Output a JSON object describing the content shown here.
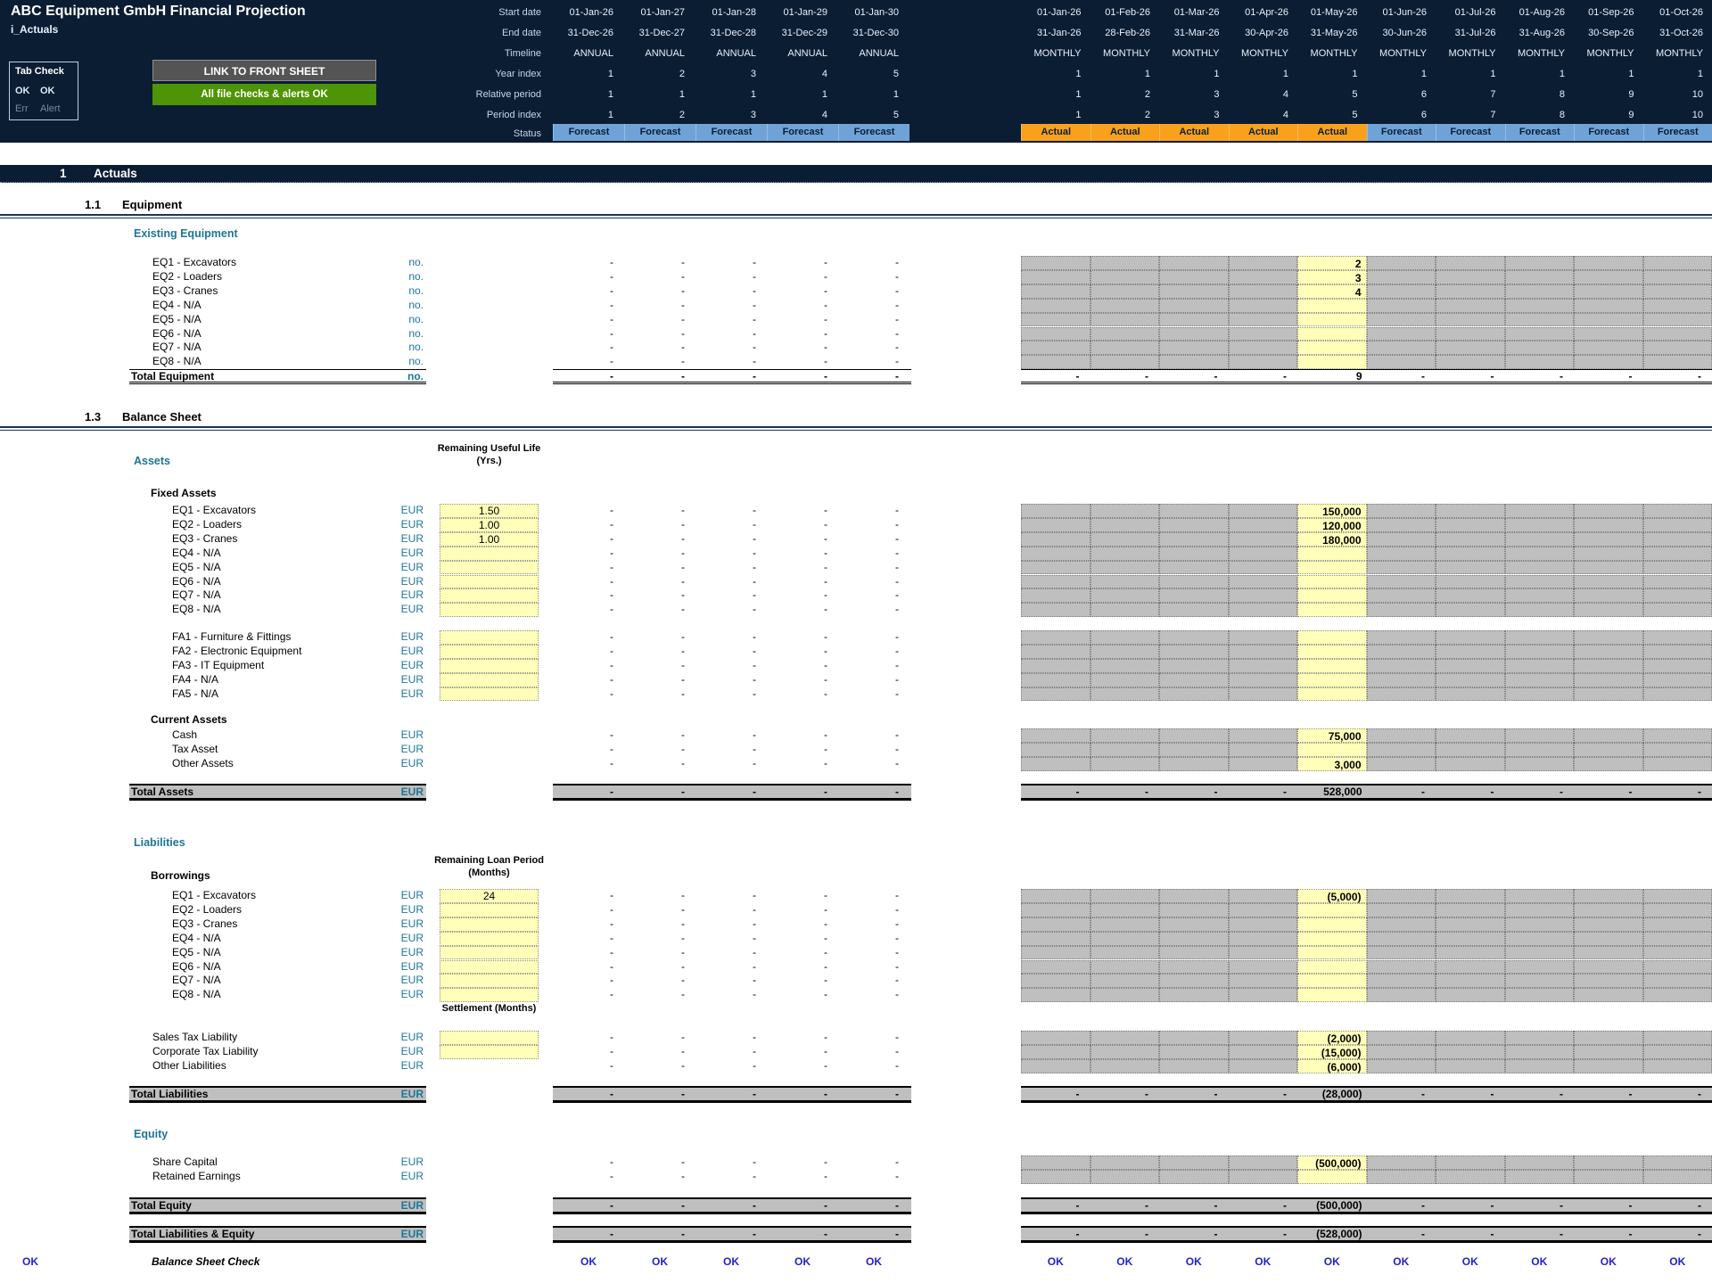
{
  "colors": {
    "navy": "#0b1d33",
    "teal": "#1e7596",
    "red": "#c00000",
    "gray": "#bfbfbf",
    "yellow": "#ffffb9",
    "statusblue": "#6fa3d8",
    "statusorange": "#f9a11b",
    "green": "#4d9406",
    "checkblue": "#2222cc"
  },
  "tokens": {
    "dash": "-"
  },
  "header": {
    "title": "ABC Equipment GmbH Financial Projection",
    "sheet_name": "i_Actuals",
    "tab_check": {
      "title": "Tab Check",
      "ok_left": "OK",
      "ok_right": "OK",
      "err": "Err",
      "alert": "Alert"
    },
    "link_button": "LINK TO FRONT SHEET",
    "checks_button": "All file checks & alerts OK",
    "row_labels": [
      "Start date",
      "End date",
      "Timeline",
      "Year index",
      "Relative period",
      "Period index",
      "Status"
    ],
    "annual": {
      "start": [
        "01-Jan-26",
        "01-Jan-27",
        "01-Jan-28",
        "01-Jan-29",
        "01-Jan-30"
      ],
      "end": [
        "31-Dec-26",
        "31-Dec-27",
        "31-Dec-28",
        "31-Dec-29",
        "31-Dec-30"
      ],
      "timeline": [
        "ANNUAL",
        "ANNUAL",
        "ANNUAL",
        "ANNUAL",
        "ANNUAL"
      ],
      "year_index": [
        "1",
        "2",
        "3",
        "4",
        "5"
      ],
      "relative_period": [
        "1",
        "1",
        "1",
        "1",
        "1"
      ],
      "period_index": [
        "1",
        "2",
        "3",
        "4",
        "5"
      ],
      "status": [
        "Forecast",
        "Forecast",
        "Forecast",
        "Forecast",
        "Forecast"
      ]
    },
    "monthly": {
      "start": [
        "01-Jan-26",
        "01-Feb-26",
        "01-Mar-26",
        "01-Apr-26",
        "01-May-26",
        "01-Jun-26",
        "01-Jul-26",
        "01-Aug-26",
        "01-Sep-26",
        "01-Oct-26"
      ],
      "end": [
        "31-Jan-26",
        "28-Feb-26",
        "31-Mar-26",
        "30-Apr-26",
        "31-May-26",
        "30-Jun-26",
        "31-Jul-26",
        "31-Aug-26",
        "30-Sep-26",
        "31-Oct-26"
      ],
      "timeline": [
        "MONTHLY",
        "MONTHLY",
        "MONTHLY",
        "MONTHLY",
        "MONTHLY",
        "MONTHLY",
        "MONTHLY",
        "MONTHLY",
        "MONTHLY",
        "MONTHLY"
      ],
      "year_index": [
        "1",
        "1",
        "1",
        "1",
        "1",
        "1",
        "1",
        "1",
        "1",
        "1"
      ],
      "relative_period": [
        "1",
        "2",
        "3",
        "4",
        "5",
        "6",
        "7",
        "8",
        "9",
        "10"
      ],
      "period_index": [
        "1",
        "2",
        "3",
        "4",
        "5",
        "6",
        "7",
        "8",
        "9",
        "10"
      ],
      "status": [
        "Actual",
        "Actual",
        "Actual",
        "Actual",
        "Actual",
        "Forecast",
        "Forecast",
        "Forecast",
        "Forecast",
        "Forecast"
      ]
    }
  },
  "sections": {
    "actuals": {
      "num": "1",
      "title": "Actuals"
    },
    "equipment": {
      "num": "1.1",
      "title": "Equipment",
      "subhead": "Existing Equipment",
      "unit": "no.",
      "rows": [
        {
          "label": "EQ1 - Excavators",
          "may": "2"
        },
        {
          "label": "EQ2 - Loaders",
          "may": "3"
        },
        {
          "label": "EQ3 - Cranes",
          "may": "4"
        },
        {
          "label": "EQ4 - N/A",
          "may": ""
        },
        {
          "label": "EQ5 - N/A",
          "may": ""
        },
        {
          "label": "EQ6 - N/A",
          "may": ""
        },
        {
          "label": "EQ7 - N/A",
          "may": ""
        },
        {
          "label": "EQ8 - N/A",
          "may": ""
        }
      ],
      "total": {
        "label": "Total Equipment",
        "unit": "no.",
        "may": "9"
      }
    },
    "balance_sheet": {
      "num": "1.3",
      "title": "Balance Sheet",
      "unit": "EUR",
      "assets": {
        "head": "Assets",
        "input_header": [
          "Remaining Useful",
          "Life (Yrs.)"
        ],
        "fixed_label": "Fixed Assets",
        "fixed_rows": [
          {
            "label": "EQ1 - Excavators",
            "inp": "1.50",
            "may": "150,000"
          },
          {
            "label": "EQ2 - Loaders",
            "inp": "1.00",
            "may": "120,000"
          },
          {
            "label": "EQ3 - Cranes",
            "inp": "1.00",
            "may": "180,000"
          },
          {
            "label": "EQ4 - N/A",
            "inp": "",
            "may": ""
          },
          {
            "label": "EQ5 - N/A",
            "inp": "",
            "may": ""
          },
          {
            "label": "EQ6 - N/A",
            "inp": "",
            "may": ""
          },
          {
            "label": "EQ7 - N/A",
            "inp": "",
            "may": ""
          },
          {
            "label": "EQ8 - N/A",
            "inp": "",
            "may": ""
          }
        ],
        "fa_rows": [
          {
            "label": "FA1 - Furniture & Fittings",
            "inp": "",
            "may": ""
          },
          {
            "label": "FA2 - Electronic Equipment",
            "inp": "",
            "may": ""
          },
          {
            "label": "FA3 - IT Equipment",
            "inp": "",
            "may": ""
          },
          {
            "label": "FA4 - N/A",
            "inp": "",
            "may": ""
          },
          {
            "label": "FA5 - N/A",
            "inp": "",
            "may": ""
          }
        ],
        "current_label": "Current Assets",
        "current_rows": [
          {
            "label": "Cash",
            "may": "75,000"
          },
          {
            "label": "Tax Asset",
            "may": ""
          },
          {
            "label": "Other Assets",
            "may": "3,000"
          }
        ],
        "total": {
          "label": "Total Assets",
          "unit": "EUR",
          "may": "528,000"
        }
      },
      "liabilities": {
        "head": "Liabilities",
        "borrow_label": "Borrowings",
        "input_header": [
          "Remaining Loan",
          "Period (Months)"
        ],
        "borrow_rows": [
          {
            "label": "EQ1 - Excavators",
            "inp": "24",
            "may": "(5,000)"
          },
          {
            "label": "EQ2 - Loaders",
            "inp": "",
            "may": ""
          },
          {
            "label": "EQ3 - Cranes",
            "inp": "",
            "may": ""
          },
          {
            "label": "EQ4 - N/A",
            "inp": "",
            "may": ""
          },
          {
            "label": "EQ5 - N/A",
            "inp": "",
            "may": ""
          },
          {
            "label": "EQ6 - N/A",
            "inp": "",
            "may": ""
          },
          {
            "label": "EQ7 - N/A",
            "inp": "",
            "may": ""
          },
          {
            "label": "EQ8 - N/A",
            "inp": "",
            "may": ""
          }
        ],
        "settlement_header": [
          "Settlement",
          "(Months)"
        ],
        "tax_rows": [
          {
            "label": "Sales Tax Liability",
            "inp": "",
            "may": "(2,000)"
          },
          {
            "label": "Corporate Tax Liability",
            "inp": "",
            "may": "(15,000)"
          },
          {
            "label": "Other Liabilities",
            "may": "(6,000)"
          }
        ],
        "total": {
          "label": "Total Liabilities",
          "unit": "EUR",
          "may": "(28,000)"
        }
      },
      "equity": {
        "head": "Equity",
        "rows": [
          {
            "label": "Share Capital",
            "may": "(500,000)"
          },
          {
            "label": "Retained Earnings",
            "may": ""
          }
        ],
        "total": {
          "label": "Total Equity",
          "unit": "EUR",
          "may": "(500,000)"
        },
        "total_le": {
          "label": "Total Liabilities & Equity",
          "unit": "EUR",
          "may": "(528,000)"
        }
      }
    },
    "check": {
      "left": "OK",
      "label": "Balance Sheet Check",
      "annual": [
        "OK",
        "OK",
        "OK",
        "OK",
        "OK"
      ],
      "monthly": [
        "OK",
        "OK",
        "OK",
        "OK",
        "OK",
        "OK",
        "OK",
        "OK",
        "OK",
        "OK"
      ]
    }
  }
}
